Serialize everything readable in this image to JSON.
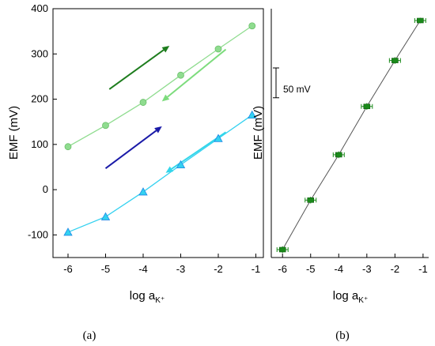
{
  "chart_data": [
    {
      "type": "line",
      "panel_label": "(a)",
      "xlabel_main": "log a",
      "xlabel_sub": "K⁺",
      "ylabel": "EMF (mV)",
      "xlim": [
        -6.4,
        -0.8
      ],
      "ylim": [
        -150,
        400
      ],
      "xticks": [
        -6,
        -5,
        -4,
        -3,
        -2,
        -1
      ],
      "yticks": [
        -100,
        0,
        100,
        200,
        300,
        400
      ],
      "series": [
        {
          "marker": "circle",
          "color": "#8fdc8f",
          "edge": "#6abf6a",
          "x": [
            -6,
            -5,
            -4,
            -3,
            -2,
            -1.1
          ],
          "y": [
            95,
            142,
            193,
            253,
            311,
            362
          ]
        },
        {
          "marker": "triangle",
          "color": "#33d1f0",
          "edge": "#1e88e5",
          "x": [
            -6,
            -5,
            -4,
            -3,
            -2,
            -1.1
          ],
          "y": [
            -94,
            -60,
            -5,
            55,
            113,
            165
          ]
        }
      ],
      "arrows": [
        {
          "color": "#1e7d1e",
          "from": [
            -4.9,
            222
          ],
          "to": [
            -3.3,
            318
          ]
        },
        {
          "color": "#7ddc7d",
          "from": [
            -1.8,
            310
          ],
          "to": [
            -3.5,
            195
          ]
        },
        {
          "color": "#1a1aa8",
          "from": [
            -5.0,
            47
          ],
          "to": [
            -3.5,
            140
          ]
        },
        {
          "color": "#33d6ea",
          "from": [
            -1.8,
            127
          ],
          "to": [
            -3.4,
            37
          ]
        }
      ]
    },
    {
      "type": "line",
      "panel_label": "(b)",
      "xlabel_main": "log a",
      "xlabel_sub": "K⁺",
      "ylabel": "EMF (mV)",
      "xlim": [
        -6.4,
        -0.8
      ],
      "xticks": [
        -6,
        -5,
        -4,
        -3,
        -2,
        -1
      ],
      "scale_bar_label": "50 mV",
      "scale_bar_mv": 50,
      "series": [
        {
          "marker": "square",
          "color": "#1a8a1a",
          "x": [
            -6,
            -5,
            -4,
            -3,
            -2,
            -1.1
          ],
          "y": [
            0,
            83,
            159,
            240,
            317,
            384
          ],
          "err": [
            3,
            3,
            3,
            3,
            3,
            2
          ]
        }
      ]
    }
  ]
}
